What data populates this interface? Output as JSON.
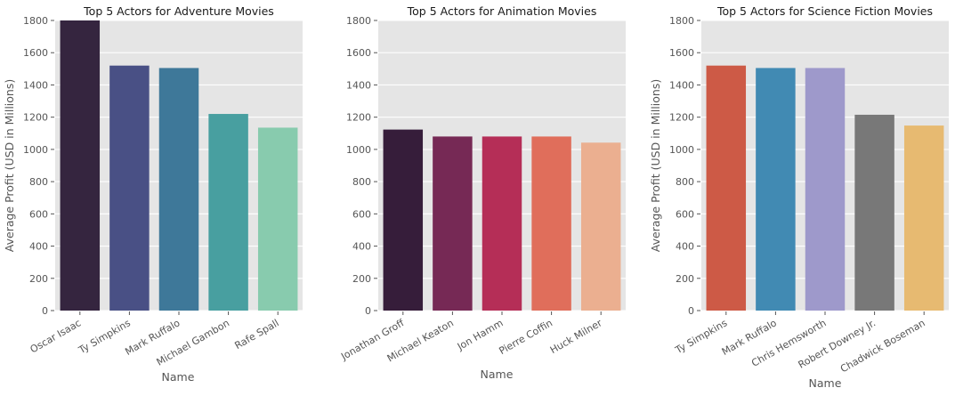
{
  "chart_data": [
    {
      "type": "bar",
      "title": "Top 5 Actors for Adventure Movies",
      "xlabel": "Name",
      "ylabel": "Average Profit (USD in Millions)",
      "ylim": [
        0,
        1800
      ],
      "yticks": [
        0,
        200,
        400,
        600,
        800,
        1000,
        1200,
        1400,
        1600,
        1800
      ],
      "categories": [
        "Oscar Isaac",
        "Ty Simpkins",
        "Mark Ruffalo",
        "Michael Gambon",
        "Rafe Spall"
      ],
      "values": [
        1800,
        1520,
        1505,
        1220,
        1135
      ],
      "colors": [
        "#35253f",
        "#495085",
        "#3e7899",
        "#489fa0",
        "#88cbae"
      ],
      "grid": true
    },
    {
      "type": "bar",
      "title": "Top 5 Actors for Animation Movies",
      "xlabel": "Name",
      "ylabel": "",
      "ylim": [
        0,
        1800
      ],
      "yticks": [
        0,
        200,
        400,
        600,
        800,
        1000,
        1200,
        1400,
        1600,
        1800
      ],
      "categories": [
        "Jonathan Groff",
        "Michael Keaton",
        "Jon Hamm",
        "Pierre Coffin",
        "Huck Milner"
      ],
      "values": [
        1123,
        1080,
        1080,
        1080,
        1042
      ],
      "colors": [
        "#361d3a",
        "#762955",
        "#b52e57",
        "#e06e5b",
        "#ebaf90"
      ],
      "grid": true
    },
    {
      "type": "bar",
      "title": "Top 5 Actors for Science Fiction Movies",
      "xlabel": "Name",
      "ylabel": "Average Profit (USD in Millions)",
      "ylim": [
        0,
        1800
      ],
      "yticks": [
        0,
        200,
        400,
        600,
        800,
        1000,
        1200,
        1400,
        1600,
        1800
      ],
      "categories": [
        "Ty Simpkins",
        "Mark Ruffalo",
        "Chris Hemsworth",
        "Robert Downey Jr.",
        "Chadwick Boseman"
      ],
      "values": [
        1520,
        1505,
        1505,
        1215,
        1148
      ],
      "colors": [
        "#cd5a46",
        "#418ab3",
        "#9e99cb",
        "#787878",
        "#e7ba71"
      ],
      "grid": true
    }
  ]
}
